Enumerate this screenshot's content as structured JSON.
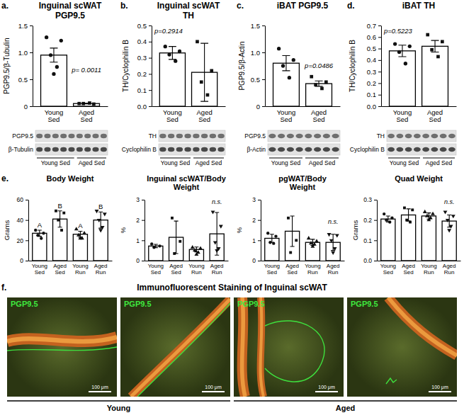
{
  "chart_data": [
    {
      "panel": "a.",
      "type": "bar",
      "title": "Inguinal scWAT PGP9.5",
      "y_label": "PGP9.5/β-Tubulin",
      "categories": [
        "Young Sed",
        "Aged Sed"
      ],
      "values": [
        0.95,
        0.05
      ],
      "errors": [
        0.13,
        0.005
      ],
      "points": [
        [
          1.28,
          1.22,
          0.95,
          0.73,
          0.6
        ],
        [
          0.05,
          0.04,
          0.05,
          0.06
        ]
      ],
      "ylim": [
        0,
        1.5
      ],
      "yticks": [
        0,
        0.5,
        {
          "value": 1,
          "label": "1.0"
        },
        1.5
      ],
      "annotations": [
        "p= 0.0011"
      ],
      "blot_rows": [
        "PGP9.5",
        "β-Tubulin"
      ]
    },
    {
      "panel": "b.",
      "type": "bar",
      "title": "Inguinal scWAT TH",
      "y_label": "TH/Cyclophilin B",
      "categories": [
        "Young Sed",
        "Aged Sed"
      ],
      "values": [
        0.33,
        0.21
      ],
      "errors": [
        0.04,
        0.18
      ],
      "points": [
        [
          0.37,
          0.34,
          0.32,
          0.28
        ],
        [
          0.4,
          0.22,
          0.15,
          0.07
        ]
      ],
      "ylim": [
        0,
        0.5
      ],
      "yticks": [
        {
          "value": 0,
          "label": "0.0"
        },
        0.1,
        0.2,
        0.3,
        0.4,
        0.5
      ],
      "annotations": [
        "p=0.2914"
      ],
      "blot_rows": [
        "TH",
        "Cyclophilin B"
      ]
    },
    {
      "panel": "c.",
      "type": "bar",
      "title": "iBAT PGP9.5",
      "y_label": "PGP9.5/β-Actin",
      "categories": [
        "Young Sed",
        "Aged Sed"
      ],
      "values": [
        0.8,
        0.42
      ],
      "errors": [
        0.14,
        0.05
      ],
      "points": [
        [
          1.07,
          0.86,
          0.75,
          0.53
        ],
        [
          0.55,
          0.45,
          0.4,
          0.33
        ]
      ],
      "ylim": [
        0,
        1.5
      ],
      "yticks": [
        0,
        0.5,
        {
          "value": 1,
          "label": "1.0"
        },
        1.5
      ],
      "annotations": [
        "p=0.0486"
      ],
      "blot_rows": [
        "PGP9.5",
        "β-Actin"
      ]
    },
    {
      "panel": "d.",
      "type": "bar",
      "title": "iBAT TH",
      "y_label": "TH/Cyclophilin B",
      "categories": [
        "Young Sed",
        "Aged Sed"
      ],
      "values": [
        0.48,
        0.52
      ],
      "errors": [
        0.05,
        0.05
      ],
      "points": [
        [
          0.54,
          0.52,
          0.47,
          0.37
        ],
        [
          0.62,
          0.56,
          0.49,
          0.43
        ]
      ],
      "ylim": [
        0,
        0.7
      ],
      "yticks": [
        {
          "value": 0,
          "label": "0.0"
        },
        0.1,
        0.2,
        0.3,
        0.4,
        0.5,
        0.6,
        0.7
      ],
      "annotations": [
        "p=0.5223"
      ],
      "blot_rows": [
        "TH",
        "Cyclophilin B"
      ]
    },
    {
      "panel": "e.",
      "type": "bar",
      "title": "Body Weight",
      "y_label": "Grams",
      "categories": [
        "Young Sed",
        "Aged Sed",
        "Young Run",
        "Aged Run"
      ],
      "values": [
        27,
        41,
        26,
        40
      ],
      "errors": [
        3,
        8,
        3,
        8
      ],
      "points": [
        [
          30,
          27,
          25,
          22
        ],
        [
          49,
          47,
          40,
          30
        ],
        [
          31,
          27,
          25,
          22,
          22
        ],
        [
          49,
          46,
          40,
          33,
          30
        ]
      ],
      "ylim": [
        0,
        60
      ],
      "yticks": [
        0,
        20,
        40,
        60
      ],
      "letters": [
        "A",
        "B",
        "A",
        "B"
      ]
    },
    {
      "type": "bar",
      "title": "Inguinal scWAT/Body Weight",
      "y_label": "%",
      "categories": [
        "Young Sed",
        "Aged Sed",
        "Young Run",
        "Aged Run"
      ],
      "values": [
        0.72,
        1.15,
        0.55,
        1.32
      ],
      "errors": [
        0.08,
        0.8,
        0.12,
        1.05
      ],
      "points": [
        [
          0.82,
          0.72,
          0.65
        ],
        [
          2.1,
          0.95,
          0.35
        ],
        [
          0.65,
          0.6,
          0.5,
          0.4,
          0.3
        ],
        [
          2.4,
          1.7,
          0.9,
          0.6,
          0.5
        ]
      ],
      "ylim": [
        0,
        3
      ],
      "yticks": [
        0,
        1,
        2,
        3
      ],
      "annotations": [
        "n.s."
      ]
    },
    {
      "type": "bar",
      "title": "pgWAT/Body Weight",
      "y_label": "%",
      "categories": [
        "Young Sed",
        "Aged Sed",
        "Young Run",
        "Aged Run"
      ],
      "values": [
        1.1,
        1.45,
        0.9,
        0.9
      ],
      "errors": [
        0.2,
        0.75,
        0.15,
        0.4
      ],
      "points": [
        [
          1.35,
          1.2,
          0.9,
          0.85
        ],
        [
          2.1,
          1.0,
          0.4
        ],
        [
          1.1,
          0.95,
          0.85,
          0.8,
          0.7
        ],
        [
          1.3,
          1.25,
          1.0,
          0.6,
          0.4
        ]
      ],
      "ylim": [
        0,
        3
      ],
      "yticks": [
        0,
        1,
        2,
        3
      ],
      "annotations": [
        "n.s."
      ]
    },
    {
      "type": "bar",
      "title": "Quad Weight",
      "y_label": "Grams",
      "categories": [
        "Young Sed",
        "Aged Sed",
        "Young Run",
        "Aged Run"
      ],
      "values": [
        0.205,
        0.225,
        0.22,
        0.195
      ],
      "errors": [
        0.015,
        0.03,
        0.015,
        0.03
      ],
      "points": [
        [
          0.23,
          0.21,
          0.2,
          0.19
        ],
        [
          0.26,
          0.25,
          0.2,
          0.19
        ],
        [
          0.24,
          0.23,
          0.22,
          0.21,
          0.2
        ],
        [
          0.24,
          0.22,
          0.2,
          0.17,
          0.15
        ]
      ],
      "ylim": [
        0,
        0.3
      ],
      "yticks": [
        {
          "value": 0,
          "label": "0.0"
        },
        0.1,
        0.2,
        0.3
      ],
      "annotations": [
        "n.s."
      ]
    }
  ],
  "figure_f": {
    "panel": "f.",
    "title": "Immunofluorescent Staining of Inguinal scWAT",
    "images": [
      {
        "stain": "PGP9.5",
        "scale_bar": "100 μm"
      },
      {
        "stain": "PGP9.5",
        "scale_bar": "100 μm"
      },
      {
        "stain": "PGP9.5",
        "scale_bar": "100 μm"
      },
      {
        "stain": "PGP9.5",
        "scale_bar": "100 μm"
      }
    ],
    "groups": [
      "Young",
      "Aged"
    ]
  }
}
